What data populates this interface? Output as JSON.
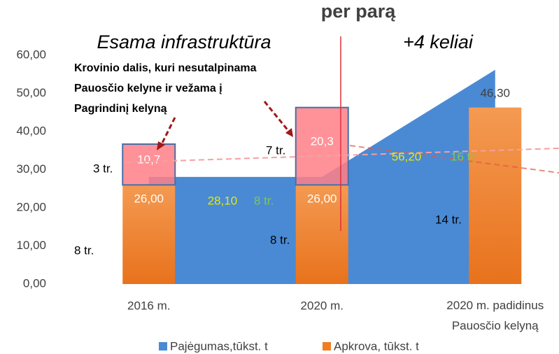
{
  "chart_data": {
    "type": "bar",
    "categories": [
      "2016 m.",
      "2020 m.",
      "2020 m. padidinus Pauosčio kelyną"
    ],
    "series": [
      {
        "name": "Pajėgumas,tūkst. t",
        "color": "#4a8ad4",
        "kind": "area",
        "values": [
          28.1,
          28.1,
          56.2
        ],
        "value_labels": [
          "28,10",
          null,
          "56,20"
        ]
      },
      {
        "name": "Apkrova, tūkst. t",
        "color": "#ee7d24",
        "kind": "bar",
        "values": [
          26,
          26,
          46.3
        ],
        "value_labels": [
          "26,00",
          "26,00",
          "46,30"
        ]
      }
    ],
    "excess": {
      "color": "#ff7f86",
      "values": [
        10.7,
        20.3
      ],
      "value_labels": [
        "10,7",
        "20,3"
      ]
    },
    "ylim": [
      0,
      60
    ],
    "yticks": [
      {
        "value": 0,
        "label": "0,00"
      },
      {
        "value": 10,
        "label": "10,00"
      },
      {
        "value": 20,
        "label": "20,00"
      },
      {
        "value": 30,
        "label": "30,00"
      },
      {
        "value": 40,
        "label": "40,00"
      },
      {
        "value": 50,
        "label": "50,00"
      },
      {
        "value": 60,
        "label": "60,00"
      }
    ],
    "annotations": [
      "per parą",
      "Esama infrastruktūra",
      "+4 keliai",
      "Krovinio dalis, kuri nesutalpinama",
      "Pauosčio kelyne ir vežama į",
      "Pagrindinį kelyną",
      "3 tr.",
      "7 tr.",
      "8 tr.",
      "8 tr.",
      "14 tr.",
      "8 tr.",
      "16 tr."
    ]
  }
}
